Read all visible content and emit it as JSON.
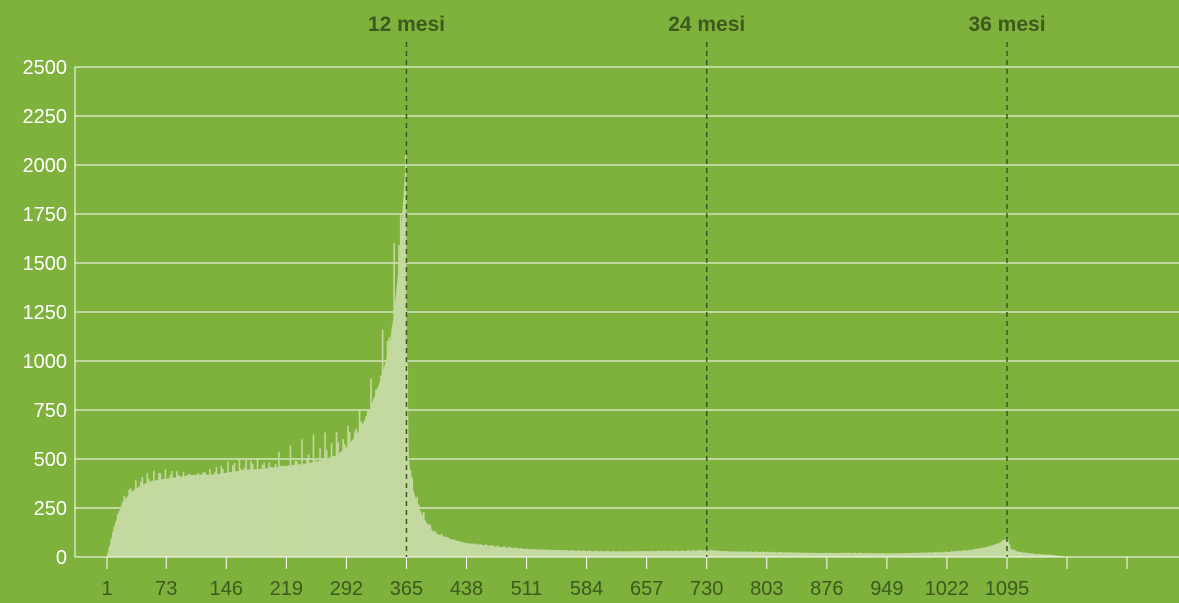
{
  "chart_data": {
    "type": "bar",
    "title": "",
    "xlabel": "",
    "ylabel": "",
    "ylim": [
      0,
      2500
    ],
    "xlim": [
      1,
      1167
    ],
    "grid": true,
    "yticks": [
      "0",
      "250",
      "500",
      "750",
      "1000",
      "1250",
      "1500",
      "1750",
      "2000",
      "2250",
      "2500"
    ],
    "xticks": [
      "1",
      "73",
      "146",
      "219",
      "292",
      "365",
      "438",
      "511",
      "584",
      "657",
      "730",
      "803",
      "876",
      "949",
      "1022",
      "1095"
    ],
    "bar_color": "#c3d9a0",
    "background_color": "#7fb13d",
    "markers": [
      {
        "x": 365,
        "label": "12 mesi"
      },
      {
        "x": 730,
        "label": "24 mesi"
      },
      {
        "x": 1095,
        "label": "36 mesi"
      }
    ],
    "series": [
      {
        "x": [
          1,
          10,
          20,
          30,
          40,
          50,
          60,
          73,
          90,
          110,
          130,
          146,
          170,
          190,
          219,
          240,
          260,
          280,
          292,
          300,
          310,
          320,
          330,
          340,
          345,
          350,
          355,
          358,
          360,
          363,
          365,
          368,
          372,
          380,
          390,
          400,
          420,
          438,
          460,
          480,
          511,
          550,
          584,
          620,
          657,
          700,
          730,
          760,
          803,
          840,
          876,
          910,
          949,
          980,
          1022,
          1050,
          1070,
          1085,
          1095,
          1100,
          1110,
          1130,
          1150,
          1160,
          1167
        ],
        "values": [
          0,
          160,
          280,
          330,
          360,
          380,
          390,
          400,
          410,
          420,
          420,
          430,
          445,
          450,
          465,
          475,
          490,
          520,
          560,
          600,
          660,
          750,
          860,
          1000,
          1100,
          1250,
          1450,
          1600,
          1750,
          1950,
          1200,
          500,
          360,
          250,
          170,
          120,
          90,
          70,
          60,
          50,
          40,
          35,
          30,
          28,
          30,
          30,
          35,
          28,
          25,
          22,
          20,
          20,
          18,
          20,
          25,
          35,
          50,
          70,
          95,
          40,
          25,
          15,
          10,
          5,
          2
        ]
      }
    ]
  }
}
